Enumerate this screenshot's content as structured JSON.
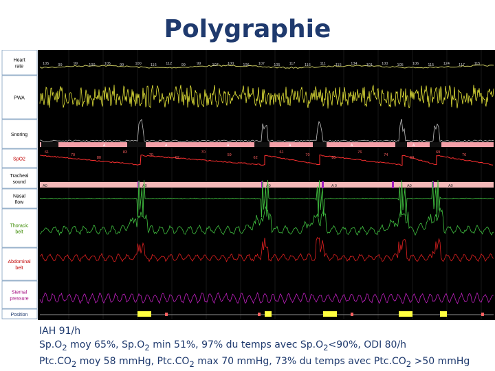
{
  "title": "Polygraphie",
  "chart_data": {
    "type": "line",
    "title": "Polygraphie",
    "channels": [
      {
        "name": "Heart rate",
        "color": "#ffffff"
      },
      {
        "name": "PWA",
        "color": "#ffff40"
      },
      {
        "name": "Snoring",
        "color": "#cccccc"
      },
      {
        "name": "SpO2",
        "color": "#ff3030"
      },
      {
        "name": "Tracheal sound",
        "color": "#ffffff"
      },
      {
        "name": "Nasal flow",
        "color": "#ffffff"
      },
      {
        "name": "Thoracic belt",
        "color": "#40c040"
      },
      {
        "name": "Abdominal belt",
        "color": "#e02020"
      },
      {
        "name": "Sternal pressure",
        "color": "#c020c0"
      },
      {
        "name": "Position",
        "color": "#ffff40"
      }
    ],
    "heart_rate_values": [
      "105",
      "99",
      "99",
      "100",
      "105",
      "99",
      "100",
      "116",
      "112",
      "99",
      "99",
      "107",
      "100",
      "106",
      "107",
      "105",
      "117",
      "116",
      "111",
      "115",
      "134",
      "101",
      "100",
      "105",
      "106",
      "115",
      "124",
      "117",
      "115"
    ],
    "spo2_values": [
      "61",
      "70",
      "80",
      "83",
      "70",
      "62",
      "70",
      "59",
      "62",
      "61",
      "70",
      "80",
      "76",
      "74",
      "69",
      "69",
      "76"
    ],
    "event_labels": [
      "A",
      "A",
      "A",
      "A",
      "A",
      "A"
    ],
    "tracheal_labels": [
      "A0",
      "A0",
      "A0",
      "A 0",
      "A0",
      "A0"
    ]
  },
  "stats": {
    "line1": "IAH 91/h",
    "line2": {
      "a": "Sp.O",
      "a_sub": "2",
      "b": " moy 65%, Sp.O",
      "b_sub": "2",
      "c": " min 51%, 97% du temps avec Sp.O",
      "c_sub": "2",
      "d": "<90%, ODI 80/h"
    },
    "line3": {
      "a": "Ptc.CO",
      "a_sub": "2",
      "b": " moy 58 mmHg, Ptc.CO",
      "b_sub": "2",
      "c": " max 70 mmHg, 73% du temps avec Ptc.CO",
      "c_sub": "2",
      "d": " >50 mmHg"
    }
  }
}
